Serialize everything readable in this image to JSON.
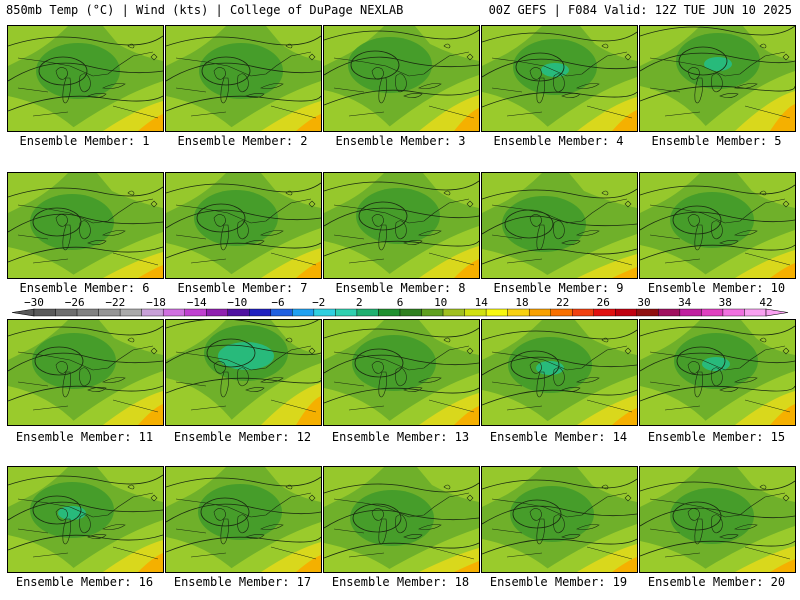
{
  "header": {
    "left": "850mb Temp (°C) | Wind (kts) | College of DuPage NEXLAB",
    "right": "00Z GEFS | F084 Valid: 12Z TUE JUN 10 2025"
  },
  "panels": [
    {
      "label": "Ensemble Member: 1"
    },
    {
      "label": "Ensemble Member: 2"
    },
    {
      "label": "Ensemble Member: 3"
    },
    {
      "label": "Ensemble Member: 4"
    },
    {
      "label": "Ensemble Member: 5"
    },
    {
      "label": "Ensemble Member: 6"
    },
    {
      "label": "Ensemble Member: 7"
    },
    {
      "label": "Ensemble Member: 8"
    },
    {
      "label": "Ensemble Member: 9"
    },
    {
      "label": "Ensemble Member: 10"
    },
    {
      "label": "Ensemble Member: 11"
    },
    {
      "label": "Ensemble Member: 12"
    },
    {
      "label": "Ensemble Member: 13"
    },
    {
      "label": "Ensemble Member: 14"
    },
    {
      "label": "Ensemble Member: 15"
    },
    {
      "label": "Ensemble Member: 16"
    },
    {
      "label": "Ensemble Member: 17"
    },
    {
      "label": "Ensemble Member: 18"
    },
    {
      "label": "Ensemble Member: 19"
    },
    {
      "label": "Ensemble Member: 20"
    }
  ],
  "colorbar": {
    "tick_labels": [
      "−30",
      "−26",
      "−22",
      "−18",
      "−14",
      "−10",
      "−6",
      "−2",
      "2",
      "6",
      "10",
      "14",
      "18",
      "22",
      "26",
      "30",
      "34",
      "38",
      "42"
    ],
    "colors": [
      "#5a5a5a",
      "#6e6e6e",
      "#828282",
      "#969696",
      "#aaaaaa",
      "#c8a0d8",
      "#d070e0",
      "#c040d0",
      "#9020b0",
      "#5010a0",
      "#2020c0",
      "#2060e0",
      "#20a0f0",
      "#30d0e0",
      "#30d0b0",
      "#20b070",
      "#209030",
      "#308020",
      "#60a020",
      "#a0c020",
      "#d0e010",
      "#f8f810",
      "#f8d010",
      "#f8a000",
      "#f87000",
      "#f04010",
      "#e01010",
      "#c00010",
      "#901010",
      "#a01060",
      "#c020a0",
      "#e040c0",
      "#f070e0",
      "#f8a0f0"
    ]
  },
  "colors": {
    "field_base": "#6fb02a",
    "field_light": "#9acb2c",
    "field_warm": "#d9d81c",
    "field_hot": "#f5b000",
    "field_dark": "#3f9a2a",
    "field_cool": "#23c08a",
    "contour": "#1a2a10"
  }
}
